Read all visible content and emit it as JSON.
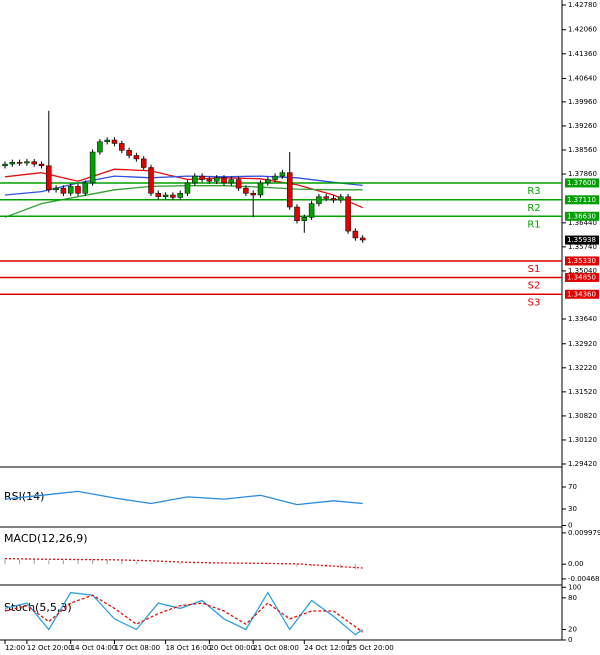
{
  "chart_data": {
    "type": "candlestick",
    "open": [
      1.381,
      1.3815,
      1.382,
      1.3818,
      1.3822,
      1.3815,
      1.381,
      1.374,
      1.3745,
      1.373,
      1.375,
      1.373,
      1.376,
      1.385,
      1.388,
      1.3885,
      1.3875,
      1.3855,
      1.384,
      1.383,
      1.3805,
      1.373,
      1.372,
      1.3725,
      1.3718,
      1.373,
      1.376,
      1.378,
      1.377,
      1.3765,
      1.3775,
      1.376,
      1.377,
      1.3745,
      1.373,
      1.3725,
      1.376,
      1.377,
      1.378,
      1.379,
      1.369,
      1.365,
      1.366,
      1.37,
      1.372,
      1.3715,
      1.371,
      1.372,
      1.362,
      1.36
    ],
    "high": [
      1.3823,
      1.3828,
      1.3828,
      1.383,
      1.383,
      1.3823,
      1.397,
      1.3753,
      1.3753,
      1.3758,
      1.3758,
      1.3768,
      1.3858,
      1.3888,
      1.3893,
      1.3893,
      1.3883,
      1.3863,
      1.3848,
      1.3838,
      1.3813,
      1.3738,
      1.3733,
      1.3733,
      1.3738,
      1.3768,
      1.3788,
      1.3788,
      1.3778,
      1.3783,
      1.3783,
      1.3778,
      1.3778,
      1.3753,
      1.3738,
      1.3768,
      1.3778,
      1.3788,
      1.3798,
      1.385,
      1.3698,
      1.3668,
      1.3708,
      1.3728,
      1.3728,
      1.3723,
      1.3728,
      1.3728,
      1.3628,
      1.3608
    ],
    "low": [
      1.3802,
      1.3807,
      1.381,
      1.381,
      1.3807,
      1.3802,
      1.3732,
      1.3732,
      1.3722,
      1.3722,
      1.3722,
      1.3722,
      1.3752,
      1.3842,
      1.3872,
      1.3867,
      1.3847,
      1.3832,
      1.3822,
      1.3797,
      1.3722,
      1.3712,
      1.3712,
      1.371,
      1.371,
      1.3722,
      1.3752,
      1.3762,
      1.3757,
      1.3757,
      1.3752,
      1.3752,
      1.3737,
      1.3722,
      1.366,
      1.3717,
      1.3752,
      1.3762,
      1.3772,
      1.3682,
      1.3642,
      1.3615,
      1.3652,
      1.3692,
      1.3707,
      1.3702,
      1.3702,
      1.3612,
      1.3592,
      1.3586
    ],
    "close": [
      1.3815,
      1.382,
      1.3818,
      1.3822,
      1.3815,
      1.381,
      1.374,
      1.3745,
      1.373,
      1.375,
      1.373,
      1.376,
      1.385,
      1.388,
      1.3885,
      1.3875,
      1.3855,
      1.384,
      1.383,
      1.3805,
      1.373,
      1.372,
      1.3725,
      1.3718,
      1.373,
      1.376,
      1.378,
      1.377,
      1.3765,
      1.3775,
      1.376,
      1.377,
      1.3745,
      1.373,
      1.3725,
      1.376,
      1.377,
      1.378,
      1.379,
      1.369,
      1.365,
      1.366,
      1.37,
      1.372,
      1.3715,
      1.371,
      1.372,
      1.362,
      1.36,
      1.3594
    ],
    "up_color": "#00a000",
    "down_color": "#e00000",
    "ylim": [
      1.2942,
      1.4278
    ],
    "yticks": [
      {
        "value": 1.4278,
        "label": "1.42780"
      },
      {
        "value": 1.4206,
        "label": "1.42060"
      },
      {
        "value": 1.4136,
        "label": "1.41360"
      },
      {
        "value": 1.4064,
        "label": "1.40640"
      },
      {
        "value": 1.3996,
        "label": "1.39960"
      },
      {
        "value": 1.3926,
        "label": "1.39260"
      },
      {
        "value": 1.3856,
        "label": "1.38560"
      },
      {
        "value": 1.3786,
        "label": "1.37860"
      },
      {
        "value": 1.3644,
        "label": "1.36440"
      },
      {
        "value": 1.3574,
        "label": "1.35740"
      },
      {
        "value": 1.3504,
        "label": "1.35040"
      },
      {
        "value": 1.3364,
        "label": "1.33640"
      },
      {
        "value": 1.3292,
        "label": "1.32920"
      },
      {
        "value": 1.3222,
        "label": "1.32220"
      },
      {
        "value": 1.3152,
        "label": "1.31520"
      },
      {
        "value": 1.3082,
        "label": "1.30820"
      },
      {
        "value": 1.3012,
        "label": "1.30120"
      },
      {
        "value": 1.2942,
        "label": "1.29420"
      }
    ],
    "xticks": [
      {
        "value": 0,
        "label": "12:00"
      },
      {
        "value": 3,
        "label": "12 Oct 20:00"
      },
      {
        "value": 9,
        "label": "14 Oct 04:00"
      },
      {
        "value": 15,
        "label": "17 Oct 08:00"
      },
      {
        "value": 22,
        "label": "18 Oct 16:00"
      },
      {
        "value": 28,
        "label": "20 Oct 00:00"
      },
      {
        "value": 34,
        "label": "21 Oct 08:00"
      },
      {
        "value": 41,
        "label": "24 Oct 12:00"
      },
      {
        "value": 47,
        "label": "25 Oct 20:00"
      }
    ],
    "moving_averages": [
      {
        "color": "#e01010",
        "x": [
          0,
          5,
          10,
          15,
          20,
          25,
          30,
          35,
          40,
          45,
          49
        ],
        "values": [
          1.3778,
          1.379,
          1.3765,
          1.38,
          1.3795,
          1.377,
          1.3775,
          1.3772,
          1.3755,
          1.3725,
          1.3688
        ]
      },
      {
        "color": "#3050e0",
        "x": [
          0,
          5,
          10,
          15,
          20,
          25,
          30,
          35,
          40,
          45,
          49
        ],
        "values": [
          1.3725,
          1.3735,
          1.376,
          1.378,
          1.3775,
          1.378,
          1.3778,
          1.378,
          1.3775,
          1.3762,
          1.3753
        ]
      },
      {
        "color": "#30a030",
        "x": [
          0,
          5,
          10,
          15,
          20,
          25,
          30,
          35,
          40,
          45,
          49
        ],
        "values": [
          1.366,
          1.37,
          1.372,
          1.374,
          1.375,
          1.3752,
          1.3752,
          1.3748,
          1.3742,
          1.374,
          1.374
        ]
      }
    ],
    "levels": [
      {
        "label": "R3",
        "value": 1.376,
        "value_label": "1.37600",
        "color": "#00a000"
      },
      {
        "label": "R2",
        "value": 1.3711,
        "value_label": "1.37110",
        "color": "#00a000"
      },
      {
        "label": "R1",
        "value": 1.3663,
        "value_label": "1.36630",
        "color": "#00a000"
      },
      {
        "label": "S1",
        "value": 1.3533,
        "value_label": "1.35330",
        "color": "#e00000"
      },
      {
        "label": "S2",
        "value": 1.3485,
        "value_label": "1.34850",
        "color": "#e00000"
      },
      {
        "label": "S3",
        "value": 1.3436,
        "value_label": "1.34360",
        "color": "#e00000"
      }
    ],
    "current_price": 1.35938,
    "rsi": {
      "title": "RSI(14)",
      "color": "#2a8ae0",
      "ylim": [
        0,
        100
      ],
      "yticks": [
        0,
        30,
        70
      ],
      "x": [
        0,
        5,
        10,
        15,
        20,
        25,
        30,
        35,
        40,
        45,
        49
      ],
      "values": [
        48,
        55,
        62,
        50,
        40,
        52,
        48,
        55,
        38,
        45,
        40
      ]
    },
    "macd": {
      "title": "MACD(12,26,9)",
      "ylim": [
        -0.0063,
        0.0109
      ],
      "yticks": [
        {
          "value": 0.009979,
          "label": "0.009979"
        },
        {
          "value": 0,
          "label": "0.00"
        },
        {
          "value": -0.004686,
          "label": "-0.004686"
        }
      ],
      "histogram": {
        "color": "#a0a0a0",
        "x": [
          0,
          2,
          4,
          6,
          8,
          10,
          12,
          14,
          16,
          18,
          20,
          22,
          24,
          26,
          28,
          30,
          32,
          34,
          36,
          38,
          40,
          42,
          44,
          46,
          48
        ],
        "values": [
          0.0016,
          0.0015,
          0.0014,
          0.0012,
          0.0013,
          0.0015,
          0.0016,
          0.0014,
          0.0012,
          0.0008,
          0.0004,
          0.0003,
          0.0004,
          0.0005,
          0.0004,
          0.0002,
          0.0001,
          0.0003,
          0.0004,
          -0.0003,
          -0.0008,
          -0.0007,
          -0.0009,
          -0.0012,
          -0.0016
        ]
      },
      "signal": {
        "color": "#e01010",
        "x": [
          0,
          5,
          10,
          15,
          20,
          25,
          30,
          35,
          40,
          45,
          49
        ],
        "values": [
          0.0018,
          0.0016,
          0.0015,
          0.0014,
          0.0011,
          0.0006,
          0.0004,
          0.0003,
          0.0001,
          -0.0006,
          -0.0012
        ]
      }
    },
    "stoch": {
      "title": "Stoch(5,5,3)",
      "ylim": [
        0,
        100
      ],
      "yticks": [
        0,
        20,
        80,
        100
      ],
      "main": {
        "color": "#2aa0e0",
        "x": [
          0,
          3,
          6,
          9,
          12,
          15,
          18,
          21,
          24,
          27,
          30,
          33,
          36,
          39,
          42,
          45,
          48,
          49
        ],
        "values": [
          60,
          70,
          20,
          90,
          85,
          40,
          20,
          70,
          60,
          75,
          40,
          20,
          90,
          20,
          75,
          45,
          10,
          20
        ]
      },
      "signal": {
        "color": "#e01010",
        "x": [
          0,
          3,
          6,
          9,
          12,
          15,
          18,
          21,
          24,
          27,
          30,
          33,
          36,
          39,
          42,
          45,
          48,
          49
        ],
        "values": [
          55,
          65,
          35,
          70,
          85,
          60,
          30,
          50,
          65,
          70,
          55,
          30,
          70,
          40,
          55,
          55,
          25,
          15
        ]
      }
    }
  }
}
